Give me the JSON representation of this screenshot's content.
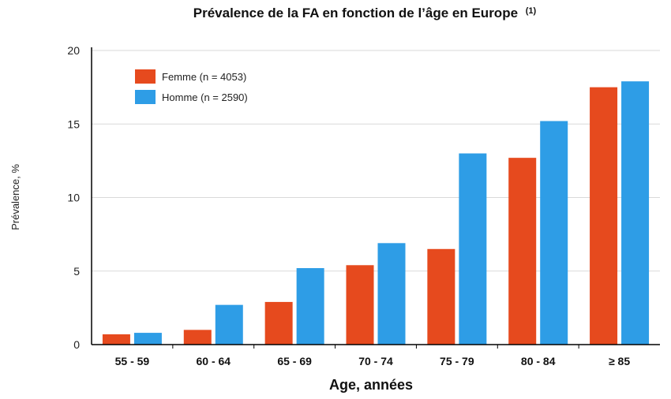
{
  "chart_data": {
    "type": "bar",
    "title": "Prévalence de la FA en fonction de l’âge en Europe",
    "title_superscript": "(1)",
    "xlabel": "Age, années",
    "ylabel": "Prévalence, %",
    "categories": [
      "55 - 59",
      "60 - 64",
      "65 - 69",
      "70 - 74",
      "75 - 79",
      "80 - 84",
      "≥ 85"
    ],
    "series": [
      {
        "name": "Femme (n = 4053)",
        "color": "#e64a1e",
        "values": [
          0.7,
          1.0,
          2.9,
          5.4,
          6.5,
          12.7,
          17.5
        ]
      },
      {
        "name": "Homme (n = 2590)",
        "color": "#2e9de6",
        "values": [
          0.8,
          2.7,
          5.2,
          6.9,
          13.0,
          15.2,
          17.9
        ]
      }
    ],
    "ylim": [
      0,
      20
    ],
    "yticks": [
      0,
      5,
      10,
      15,
      20
    ],
    "grid": true,
    "legend_position": "top-left"
  }
}
